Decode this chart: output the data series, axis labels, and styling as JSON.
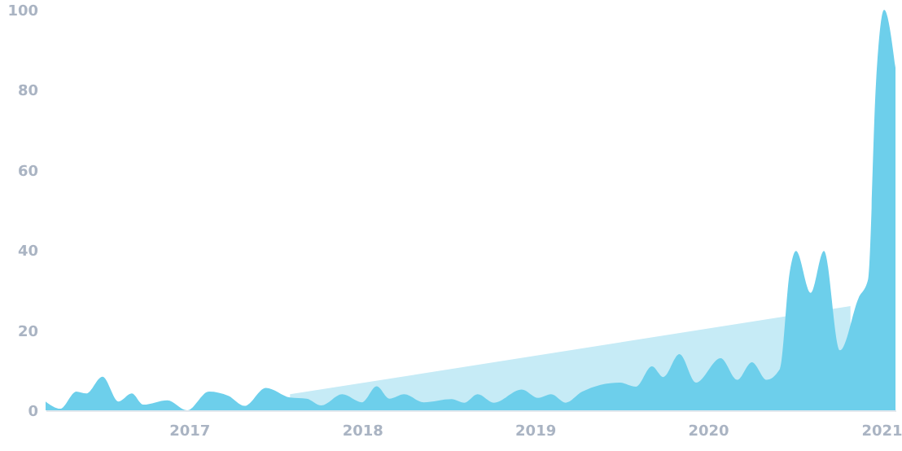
{
  "chart_data": {
    "type": "area",
    "xlim": [
      "2016-03-04",
      "2021-01-31"
    ],
    "xticks": [
      "2017",
      "2018",
      "2019",
      "2020",
      "2021"
    ],
    "ylim": [
      0,
      100
    ],
    "yticks": [
      0,
      20,
      40,
      60,
      80,
      100
    ],
    "grid": false,
    "series": [
      {
        "color": "#c6ebf6",
        "x": [
          "2017-08-02",
          "2020-10-28"
        ],
        "values": [
          4,
          26
        ]
      },
      {
        "color": "#6dcfeb",
        "x": [
          "2016-03-04",
          "2016-04-04",
          "2016-05-08",
          "2016-05-29",
          "2016-07-02",
          "2016-08-05",
          "2016-09-02",
          "2016-09-26",
          "2016-11-16",
          "2016-12-28",
          "2017-02-12",
          "2017-03-25",
          "2017-04-28",
          "2017-06-12",
          "2017-08-02",
          "2017-09-06",
          "2017-10-07",
          "2017-11-20",
          "2018-01-01",
          "2018-02-01",
          "2018-02-28",
          "2018-03-31",
          "2018-05-11",
          "2018-07-09",
          "2018-08-05",
          "2018-09-02",
          "2018-10-06",
          "2018-12-04",
          "2019-01-08",
          "2019-02-04",
          "2019-03-07",
          "2019-04-10",
          "2019-06-28",
          "2019-08-02",
          "2019-09-05",
          "2019-09-29",
          "2019-11-02",
          "2019-12-07",
          "2020-01-28",
          "2020-03-03",
          "2020-04-03",
          "2020-05-04",
          "2020-06-01",
          "2020-06-22",
          "2020-07-05",
          "2020-08-05",
          "2020-09-02",
          "2020-10-06",
          "2020-11-14",
          "2020-12-04",
          "2020-12-21",
          "2021-01-07",
          "2021-01-31"
        ],
        "values": [
          2.2,
          0.4,
          4.7,
          4.2,
          8.4,
          2.2,
          4.2,
          1.4,
          2.5,
          0,
          4.7,
          3.6,
          1.1,
          5.6,
          3.2,
          2.9,
          1.2,
          4,
          2,
          6,
          2.9,
          4,
          2,
          2.8,
          1.9,
          4,
          1.9,
          5.2,
          3.1,
          4,
          1.9,
          4.6,
          6.9,
          5.9,
          11,
          8.3,
          14,
          6.9,
          13,
          7.6,
          12,
          7.6,
          10.3,
          34.7,
          39.8,
          29.3,
          39.8,
          15,
          28,
          32.6,
          82,
          100,
          85.5
        ]
      }
    ]
  }
}
